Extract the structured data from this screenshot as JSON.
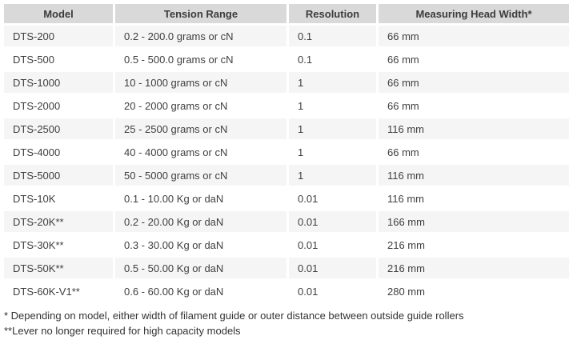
{
  "table": {
    "columns": [
      "Model",
      "Tension Range",
      "Resolution",
      "Measuring Head Width*"
    ],
    "rows": [
      [
        "DTS-200",
        "0.2 - 200.0 grams or cN",
        "0.1",
        "66 mm"
      ],
      [
        "DTS-500",
        "0.5 - 500.0 grams or cN",
        "0.1",
        "66 mm"
      ],
      [
        "DTS-1000",
        "10 - 1000 grams or cN",
        "1",
        "66 mm"
      ],
      [
        "DTS-2000",
        "20 - 2000 grams or cN",
        "1",
        "66 mm"
      ],
      [
        "DTS-2500",
        "25 - 2500 grams or cN",
        "1",
        "116 mm"
      ],
      [
        "DTS-4000",
        "40 - 4000 grams or cN",
        "1",
        "66 mm"
      ],
      [
        "DTS-5000",
        "50 - 5000 grams or cN",
        "1",
        "116 mm"
      ],
      [
        "DTS-10K",
        "0.1 - 10.00 Kg or daN",
        "0.01",
        "116 mm"
      ],
      [
        "DTS-20K**",
        "0.2 - 20.00 Kg or daN",
        "0.01",
        "166 mm"
      ],
      [
        "DTS-30K**",
        "0.3 - 30.00 Kg or daN",
        "0.01",
        "216 mm"
      ],
      [
        "DTS-50K**",
        "0.5 - 50.00 Kg or daN",
        "0.01",
        "216 mm"
      ],
      [
        "DTS-60K-V1**",
        "0.6 - 60.00 Kg or daN",
        "0.01",
        "280 mm"
      ]
    ]
  },
  "footnotes": [
    "* Depending on model, either width of filament guide or outer distance between outside guide rollers",
    "**Lever no longer required for high capacity models"
  ],
  "colors": {
    "header_bg": "#d9d9d9",
    "row_alt_bg": "#f5f5f5",
    "row_bg": "#ffffff",
    "text": "#3f3f3f"
  }
}
